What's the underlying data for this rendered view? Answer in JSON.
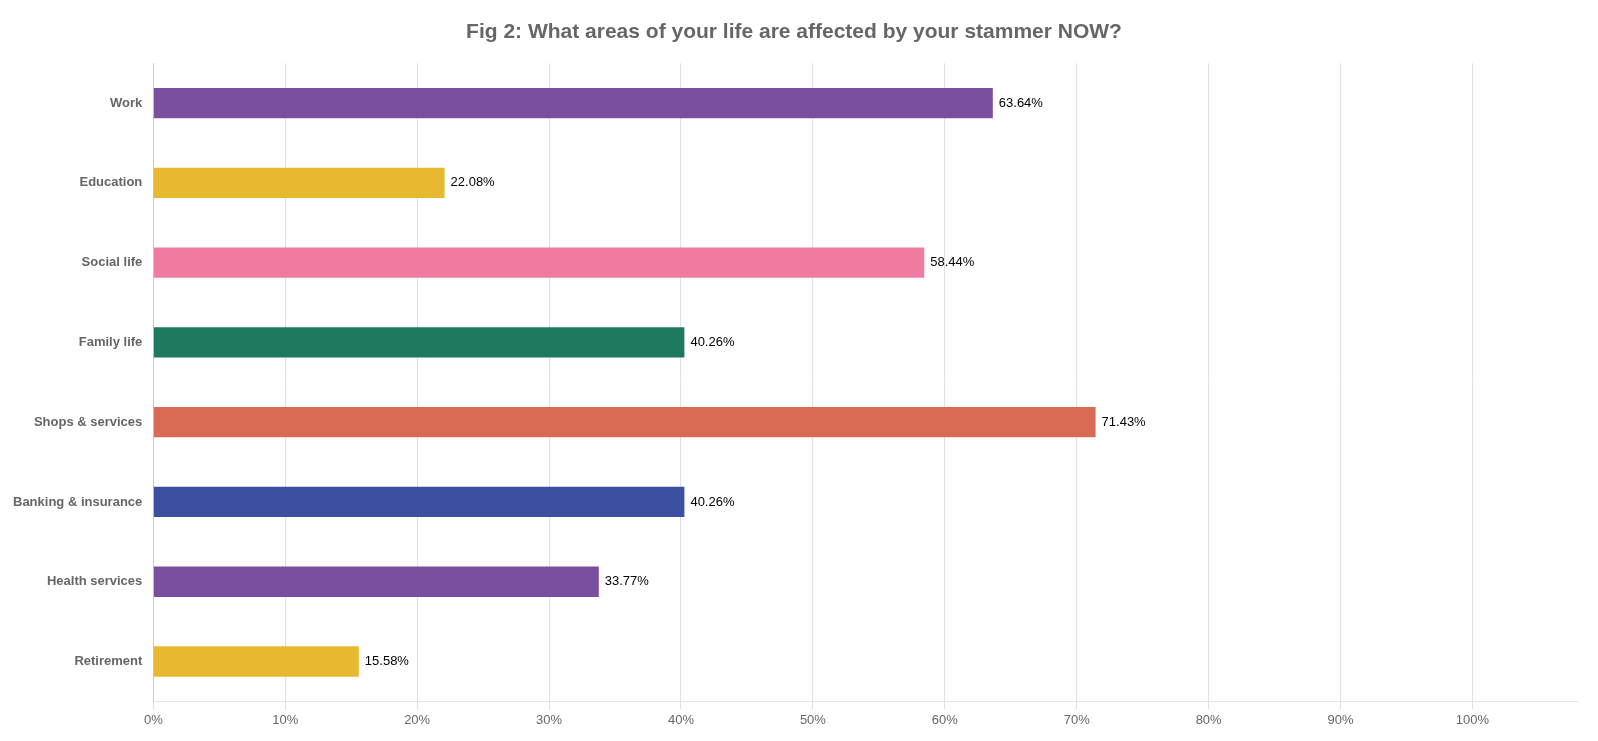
{
  "chart_data": {
    "type": "bar",
    "orientation": "horizontal",
    "title": "Fig 2: What areas of your life are affected by your stammer NOW?",
    "categories": [
      "Work",
      "Education",
      "Social life",
      "Family life",
      "Shops & services",
      "Banking & insurance",
      "Health services",
      "Retirement"
    ],
    "values": [
      63.64,
      22.08,
      58.44,
      40.26,
      71.43,
      40.26,
      33.77,
      15.58
    ],
    "value_labels": [
      "63.64%",
      "22.08%",
      "58.44%",
      "40.26%",
      "71.43%",
      "40.26%",
      "33.77%",
      "15.58%"
    ],
    "colors": [
      "#7B4FA0",
      "#E8B830",
      "#F07BA0",
      "#1D7A5F",
      "#D96B55",
      "#3D4FA0",
      "#7B4FA0",
      "#E8B830"
    ],
    "xlim": [
      0,
      108
    ],
    "xticks": [
      {
        "value": 0,
        "label": "0%"
      },
      {
        "value": 10,
        "label": "10%"
      },
      {
        "value": 20,
        "label": "20%"
      },
      {
        "value": 30,
        "label": "30%"
      },
      {
        "value": 40,
        "label": "40%"
      },
      {
        "value": 50,
        "label": "50%"
      },
      {
        "value": 60,
        "label": "60%"
      },
      {
        "value": 70,
        "label": "70%"
      },
      {
        "value": 80,
        "label": "80%"
      },
      {
        "value": 90,
        "label": "90%"
      },
      {
        "value": 100,
        "label": "100%"
      }
    ],
    "grid": true,
    "data_labels": true
  }
}
